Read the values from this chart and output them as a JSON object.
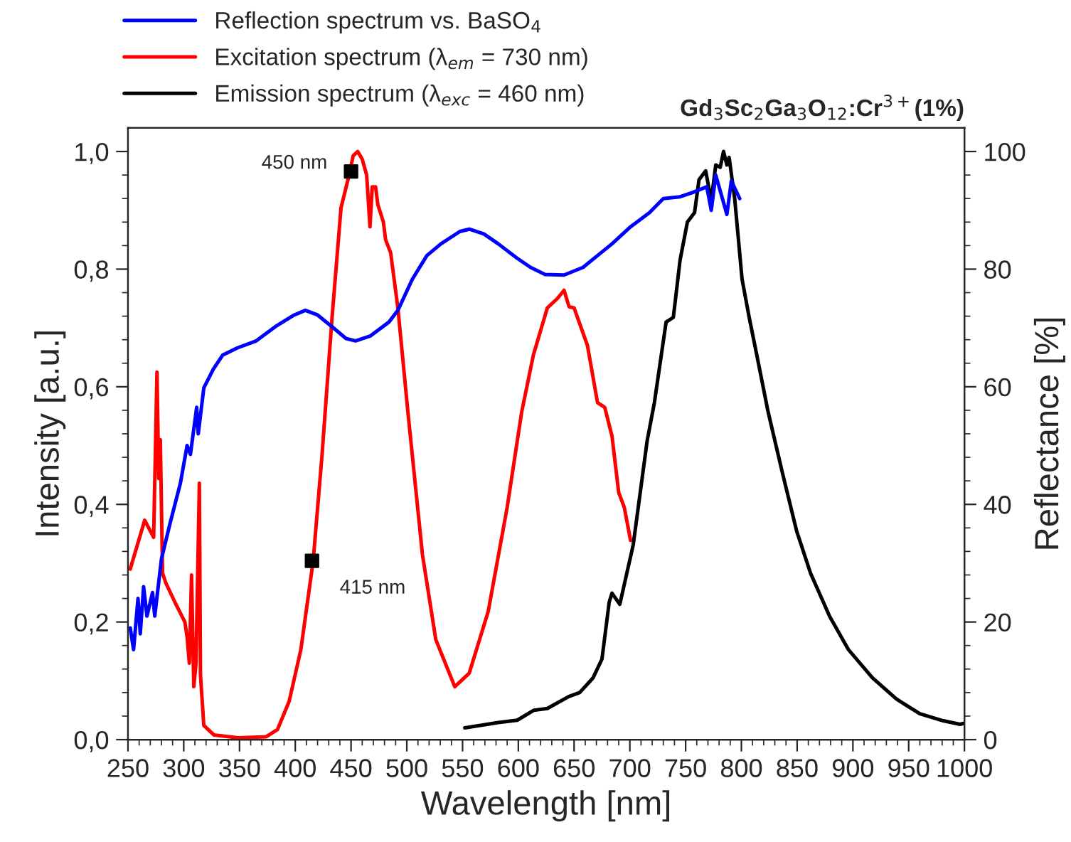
{
  "chart_data": {
    "type": "line",
    "title": "Gd$_{3}$Sc$_{2}$Ga$_{3}$O$_{12}$:Cr$^{3+}$(1%)",
    "xlabel": "Wavelength [nm]",
    "ylabel": "Intensity [a.u.]",
    "y2label": "Reflectance [%]",
    "legend": "top left",
    "grid": false,
    "xlim": [
      250,
      1000
    ],
    "ylim": [
      0,
      1.04
    ],
    "y2lim": [
      0,
      104
    ],
    "xticks": [
      250,
      {
        "value": 260,
        "label": null
      },
      {
        "value": 270,
        "label": null
      },
      {
        "value": 280,
        "label": null
      },
      {
        "value": 290,
        "label": null
      },
      300,
      {
        "value": 310,
        "label": null
      },
      {
        "value": 320,
        "label": null
      },
      {
        "value": 330,
        "label": null
      },
      {
        "value": 340,
        "label": null
      },
      350,
      {
        "value": 360,
        "label": null
      },
      {
        "value": 370,
        "label": null
      },
      {
        "value": 380,
        "label": null
      },
      {
        "value": 390,
        "label": null
      },
      400,
      {
        "value": 410,
        "label": null
      },
      {
        "value": 420,
        "label": null
      },
      {
        "value": 430,
        "label": null
      },
      {
        "value": 440,
        "label": null
      },
      450,
      {
        "value": 460,
        "label": null
      },
      {
        "value": 470,
        "label": null
      },
      {
        "value": 480,
        "label": null
      },
      {
        "value": 490,
        "label": null
      },
      500,
      {
        "value": 510,
        "label": null
      },
      {
        "value": 520,
        "label": null
      },
      {
        "value": 530,
        "label": null
      },
      {
        "value": 540,
        "label": null
      },
      550,
      {
        "value": 560,
        "label": null
      },
      {
        "value": 570,
        "label": null
      },
      {
        "value": 580,
        "label": null
      },
      {
        "value": 590,
        "label": null
      },
      600,
      {
        "value": 610,
        "label": null
      },
      {
        "value": 620,
        "label": null
      },
      {
        "value": 630,
        "label": null
      },
      {
        "value": 640,
        "label": null
      },
      650,
      {
        "value": 660,
        "label": null
      },
      {
        "value": 670,
        "label": null
      },
      {
        "value": 680,
        "label": null
      },
      {
        "value": 690,
        "label": null
      },
      700,
      {
        "value": 710,
        "label": null
      },
      {
        "value": 720,
        "label": null
      },
      {
        "value": 730,
        "label": null
      },
      {
        "value": 740,
        "label": null
      },
      750,
      {
        "value": 760,
        "label": null
      },
      {
        "value": 770,
        "label": null
      },
      {
        "value": 780,
        "label": null
      },
      {
        "value": 790,
        "label": null
      },
      800,
      {
        "value": 810,
        "label": null
      },
      {
        "value": 820,
        "label": null
      },
      {
        "value": 830,
        "label": null
      },
      {
        "value": 840,
        "label": null
      },
      850,
      {
        "value": 860,
        "label": null
      },
      {
        "value": 870,
        "label": null
      },
      {
        "value": 880,
        "label": null
      },
      {
        "value": 890,
        "label": null
      },
      900,
      {
        "value": 910,
        "label": null
      },
      {
        "value": 920,
        "label": null
      },
      {
        "value": 930,
        "label": null
      },
      {
        "value": 940,
        "label": null
      },
      950,
      {
        "value": 960,
        "label": null
      },
      {
        "value": 970,
        "label": null
      },
      {
        "value": 980,
        "label": null
      },
      {
        "value": 990,
        "label": null
      },
      1000
    ],
    "yticks": [
      {
        "value": 0,
        "label": "0,0"
      },
      {
        "value": 0.04,
        "label": null
      },
      {
        "value": 0.08,
        "label": null
      },
      {
        "value": 0.12,
        "label": null
      },
      {
        "value": 0.16,
        "label": null
      },
      {
        "value": 0.2,
        "label": "0,2"
      },
      {
        "value": 0.24,
        "label": null
      },
      {
        "value": 0.28,
        "label": null
      },
      {
        "value": 0.32,
        "label": null
      },
      {
        "value": 0.36,
        "label": null
      },
      {
        "value": 0.4,
        "label": "0,4"
      },
      {
        "value": 0.44,
        "label": null
      },
      {
        "value": 0.48,
        "label": null
      },
      {
        "value": 0.52,
        "label": null
      },
      {
        "value": 0.56,
        "label": null
      },
      {
        "value": 0.6,
        "label": "0,6"
      },
      {
        "value": 0.64,
        "label": null
      },
      {
        "value": 0.68,
        "label": null
      },
      {
        "value": 0.72,
        "label": null
      },
      {
        "value": 0.76,
        "label": null
      },
      {
        "value": 0.8,
        "label": "0,8"
      },
      {
        "value": 0.84,
        "label": null
      },
      {
        "value": 0.88,
        "label": null
      },
      {
        "value": 0.92,
        "label": null
      },
      {
        "value": 0.96,
        "label": null
      },
      {
        "value": 1.0,
        "label": "1,0"
      }
    ],
    "y2ticks": [
      0,
      {
        "value": 4,
        "label": null
      },
      {
        "value": 8,
        "label": null
      },
      {
        "value": 12,
        "label": null
      },
      {
        "value": 16,
        "label": null
      },
      20,
      {
        "value": 24,
        "label": null
      },
      {
        "value": 28,
        "label": null
      },
      {
        "value": 32,
        "label": null
      },
      {
        "value": 36,
        "label": null
      },
      40,
      {
        "value": 44,
        "label": null
      },
      {
        "value": 48,
        "label": null
      },
      {
        "value": 52,
        "label": null
      },
      {
        "value": 56,
        "label": null
      },
      60,
      {
        "value": 64,
        "label": null
      },
      {
        "value": 68,
        "label": null
      },
      {
        "value": 72,
        "label": null
      },
      {
        "value": 76,
        "label": null
      },
      80,
      {
        "value": 84,
        "label": null
      },
      {
        "value": 88,
        "label": null
      },
      {
        "value": 92,
        "label": null
      },
      {
        "value": 96,
        "label": null
      },
      100
    ],
    "series": [
      {
        "name": "Reflection spectrum vs. BaSO$_{4}$",
        "color": "#0000ff",
        "axis": "y2",
        "x": [
          252,
          255,
          259,
          261,
          264,
          267,
          272,
          274,
          280,
          288,
          297,
          303,
          306,
          311.6,
          313,
          318,
          326.5,
          335,
          348,
          365,
          382,
          399,
          409,
          420,
          433,
          445.5,
          454,
          467,
          484,
          492,
          505,
          518,
          530.6,
          547.6,
          556,
          569,
          582,
          598.6,
          611,
          624,
          641,
          658,
          671,
          684,
          700.6,
          717.6,
          730,
          745,
          756,
          769,
          773,
          777,
          787,
          791,
          798.5
        ],
        "values": [
          19,
          15.3,
          24,
          18,
          26,
          21,
          25,
          21,
          30.7,
          37,
          43.6,
          50,
          48.5,
          56.5,
          52,
          59.8,
          63,
          65.4,
          66.6,
          67.8,
          70.2,
          72.2,
          73,
          72.2,
          70.2,
          68.2,
          67.8,
          68.6,
          71,
          73,
          78.3,
          82.3,
          84.3,
          86.4,
          86.8,
          86,
          84.3,
          81.9,
          80.3,
          79.1,
          79,
          80.3,
          82.3,
          84.3,
          87.2,
          89.6,
          92,
          92.3,
          93,
          94,
          90,
          96,
          89.3,
          95,
          92
        ]
      },
      {
        "name": "Excitation spectrum (λ$_{em}$ = 730 nm)",
        "color": "#ff0000",
        "x": [
          252,
          265,
          273,
          276,
          277.6,
          279,
          281,
          284,
          292,
          301,
          303,
          305,
          307,
          309,
          311,
          314,
          315,
          318,
          327,
          349,
          374,
          384,
          394.5,
          405,
          416,
          424,
          433,
          441,
          448,
          452,
          456,
          460,
          464,
          467,
          469,
          472,
          474,
          479,
          481,
          485.5,
          492,
          501,
          514,
          526,
          543,
          556,
          573,
          590,
          603,
          613.5,
          626,
          635,
          641,
          645.5,
          650,
          662,
          671,
          677.5,
          684,
          690,
          695,
          700.6
        ],
        "values": [
          0.29,
          0.373,
          0.344,
          0.625,
          0.444,
          0.51,
          0.283,
          0.266,
          0.234,
          0.2,
          0.175,
          0.13,
          0.28,
          0.09,
          0.13,
          0.436,
          0.11,
          0.024,
          0.008,
          0.003,
          0.005,
          0.017,
          0.065,
          0.153,
          0.303,
          0.484,
          0.718,
          0.904,
          0.958,
          0.993,
          1.0,
          0.987,
          0.96,
          0.872,
          0.94,
          0.94,
          0.91,
          0.88,
          0.85,
          0.828,
          0.734,
          0.557,
          0.315,
          0.17,
          0.09,
          0.113,
          0.218,
          0.395,
          0.557,
          0.654,
          0.734,
          0.75,
          0.764,
          0.736,
          0.734,
          0.67,
          0.573,
          0.565,
          0.516,
          0.42,
          0.395,
          0.339
        ]
      },
      {
        "name": "Emission spectrum (λ$_{exc}$ = 460 nm)",
        "color": "#000000",
        "x": [
          552,
          582,
          599,
          614,
          626,
          645,
          655,
          667,
          675,
          681.5,
          684,
          691,
          703,
          715.5,
          722,
          732.5,
          739,
          745,
          751.6,
          758,
          762,
          768,
          773,
          777,
          781,
          784,
          787,
          789,
          794,
          800.6,
          807,
          815.5,
          824,
          837,
          849.5,
          862,
          879,
          896,
          917.5,
          939,
          960,
          981,
          996,
          1000
        ],
        "values": [
          0.02,
          0.029,
          0.033,
          0.05,
          0.053,
          0.073,
          0.08,
          0.105,
          0.137,
          0.234,
          0.249,
          0.23,
          0.331,
          0.508,
          0.573,
          0.71,
          0.718,
          0.815,
          0.88,
          0.896,
          0.952,
          0.967,
          0.916,
          0.977,
          0.973,
          1.0,
          0.977,
          0.99,
          0.92,
          0.783,
          0.718,
          0.638,
          0.557,
          0.452,
          0.355,
          0.283,
          0.21,
          0.153,
          0.105,
          0.069,
          0.044,
          0.032,
          0.026,
          0.028
        ]
      },
      {
        "type": "scatter",
        "marker": "square",
        "color": "#000000",
        "x": [
          415,
          450
        ],
        "values": [
          0.304,
          0.966
        ]
      }
    ],
    "annotations": [
      {
        "text": "450 nm",
        "x": 450,
        "y": 0.966
      },
      {
        "text": "415 nm",
        "x": 415,
        "y": 0.304
      }
    ]
  }
}
